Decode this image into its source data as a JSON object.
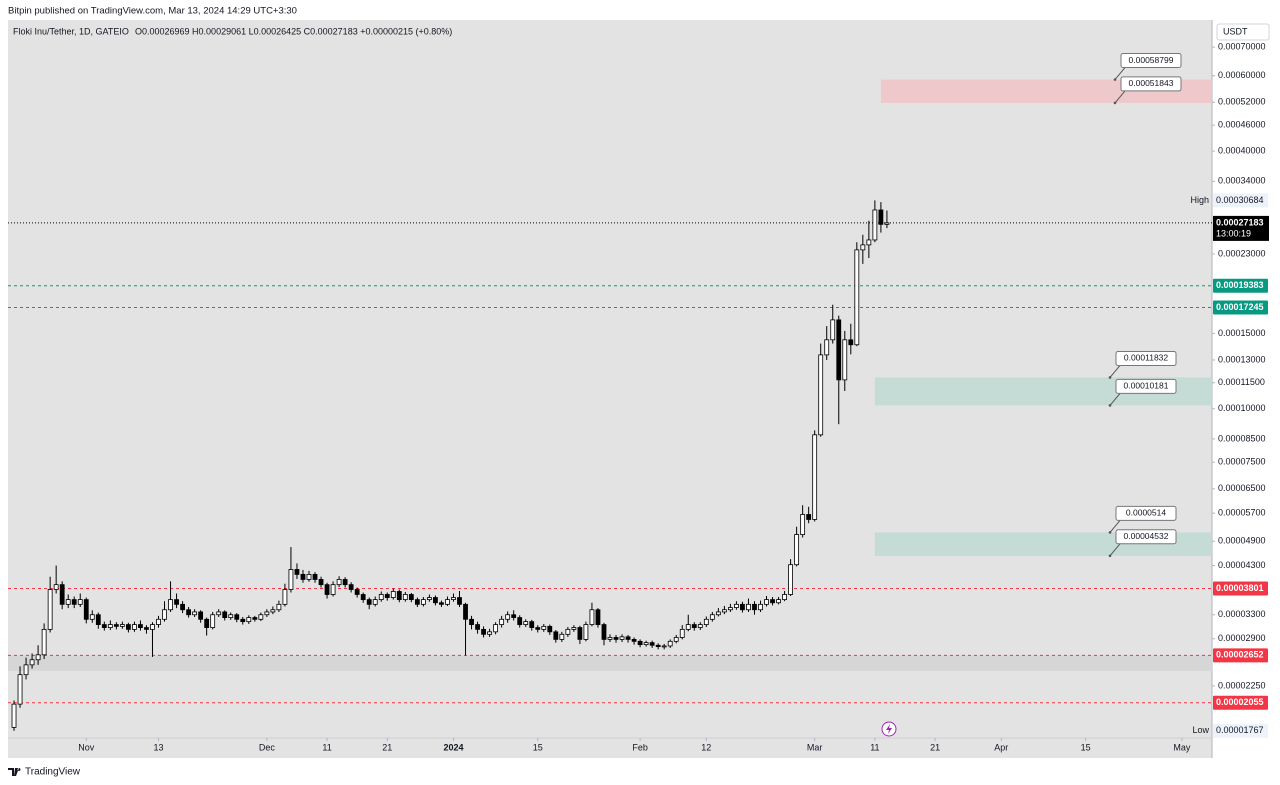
{
  "header": {
    "published": "Bitpin published on TradingView.com, Mar 13, 2024 14:29 UTC+3:30",
    "brand": "TradingView"
  },
  "chart_data": {
    "type": "candlestick",
    "symbol": "Floki Inu/Tether, 1D, GATEIO",
    "ohlc_text": "O0.00026969 H0.00029061 L0.00026425 C0.00027183 +0.00000215 (+0.80%)",
    "currency": "USDT",
    "log_scale": true,
    "grid": false,
    "xlim": [
      "2023-10-19",
      "2024-05-06"
    ],
    "xticks": [
      {
        "value": "2023-11-01",
        "label": "Nov"
      },
      {
        "value": "2023-11-13",
        "label": "13"
      },
      {
        "value": "2023-12-01",
        "label": "Dec"
      },
      {
        "value": "2023-12-11",
        "label": "11"
      },
      {
        "value": "2023-12-21",
        "label": "21"
      },
      {
        "value": "2024-01-01",
        "label": "2024"
      },
      {
        "value": "2024-01-15",
        "label": "15"
      },
      {
        "value": "2024-02-01",
        "label": "Feb"
      },
      {
        "value": "2024-02-12",
        "label": "12"
      },
      {
        "value": "2024-03-01",
        "label": "Mar"
      },
      {
        "value": "2024-03-11",
        "label": "11"
      },
      {
        "value": "2024-03-21",
        "label": "21"
      },
      {
        "value": "2024-04-01",
        "label": "Apr"
      },
      {
        "value": "2024-04-15",
        "label": "15"
      },
      {
        "value": "2024-05-01",
        "label": "May"
      }
    ],
    "ylim": [
      1.7e-05,
      0.00081
    ],
    "yticks": [
      {
        "value": 0.0007,
        "label": "0.00070000"
      },
      {
        "value": 0.0006,
        "label": "0.00060000"
      },
      {
        "value": 0.00052,
        "label": "0.00052000"
      },
      {
        "value": 0.00046,
        "label": "0.00046000"
      },
      {
        "value": 0.0004,
        "label": "0.00040000"
      },
      {
        "value": 0.00034,
        "label": "0.00034000"
      },
      {
        "value": 0.00023,
        "label": "0.00023000"
      },
      {
        "value": 0.00015,
        "label": "0.00015000"
      },
      {
        "value": 0.00013,
        "label": "0.00013000"
      },
      {
        "value": 0.000115,
        "label": "0.00011500"
      },
      {
        "value": 0.0001,
        "label": "0.00010000"
      },
      {
        "value": 8.5e-05,
        "label": "0.00008500"
      },
      {
        "value": 7.5e-05,
        "label": "0.00007500"
      },
      {
        "value": 6.5e-05,
        "label": "0.00006500"
      },
      {
        "value": 5.7e-05,
        "label": "0.00005700"
      },
      {
        "value": 4.9e-05,
        "label": "0.00004900"
      },
      {
        "value": 4.3e-05,
        "label": "0.00004300"
      },
      {
        "value": 3.3e-05,
        "label": "0.00003300"
      },
      {
        "value": 2.9e-05,
        "label": "0.00002900"
      },
      {
        "value": 2.25e-05,
        "label": "0.00002250"
      }
    ],
    "up_color": "#ffffff",
    "down_color": "#000000",
    "x": [
      "2023-10-20",
      "2023-10-21",
      "2023-10-22",
      "2023-10-23",
      "2023-10-24",
      "2023-10-25",
      "2023-10-26",
      "2023-10-27",
      "2023-10-28",
      "2023-10-29",
      "2023-10-30",
      "2023-10-31",
      "2023-11-01",
      "2023-11-02",
      "2023-11-03",
      "2023-11-04",
      "2023-11-05",
      "2023-11-06",
      "2023-11-07",
      "2023-11-08",
      "2023-11-09",
      "2023-11-10",
      "2023-11-11",
      "2023-11-12",
      "2023-11-13",
      "2023-11-14",
      "2023-11-15",
      "2023-11-16",
      "2023-11-17",
      "2023-11-18",
      "2023-11-19",
      "2023-11-20",
      "2023-11-21",
      "2023-11-22",
      "2023-11-23",
      "2023-11-24",
      "2023-11-25",
      "2023-11-26",
      "2023-11-27",
      "2023-11-28",
      "2023-11-29",
      "2023-11-30",
      "2023-12-01",
      "2023-12-02",
      "2023-12-03",
      "2023-12-04",
      "2023-12-05",
      "2023-12-06",
      "2023-12-07",
      "2023-12-08",
      "2023-12-09",
      "2023-12-10",
      "2023-12-11",
      "2023-12-12",
      "2023-12-13",
      "2023-12-14",
      "2023-12-15",
      "2023-12-16",
      "2023-12-17",
      "2023-12-18",
      "2023-12-19",
      "2023-12-20",
      "2023-12-21",
      "2023-12-22",
      "2023-12-23",
      "2023-12-24",
      "2023-12-25",
      "2023-12-26",
      "2023-12-27",
      "2023-12-28",
      "2023-12-29",
      "2023-12-30",
      "2023-12-31",
      "2024-01-01",
      "2024-01-02",
      "2024-01-03",
      "2024-01-04",
      "2024-01-05",
      "2024-01-06",
      "2024-01-07",
      "2024-01-08",
      "2024-01-09",
      "2024-01-10",
      "2024-01-11",
      "2024-01-12",
      "2024-01-13",
      "2024-01-14",
      "2024-01-15",
      "2024-01-16",
      "2024-01-17",
      "2024-01-18",
      "2024-01-19",
      "2024-01-20",
      "2024-01-21",
      "2024-01-22",
      "2024-01-23",
      "2024-01-24",
      "2024-01-25",
      "2024-01-26",
      "2024-01-27",
      "2024-01-28",
      "2024-01-29",
      "2024-01-30",
      "2024-01-31",
      "2024-02-01",
      "2024-02-02",
      "2024-02-03",
      "2024-02-04",
      "2024-02-05",
      "2024-02-06",
      "2024-02-07",
      "2024-02-08",
      "2024-02-09",
      "2024-02-10",
      "2024-02-11",
      "2024-02-12",
      "2024-02-13",
      "2024-02-14",
      "2024-02-15",
      "2024-02-16",
      "2024-02-17",
      "2024-02-18",
      "2024-02-19",
      "2024-02-20",
      "2024-02-21",
      "2024-02-22",
      "2024-02-23",
      "2024-02-24",
      "2024-02-25",
      "2024-02-26",
      "2024-02-27",
      "2024-02-28",
      "2024-02-29",
      "2024-03-01",
      "2024-03-02",
      "2024-03-03",
      "2024-03-04",
      "2024-03-05",
      "2024-03-06",
      "2024-03-07",
      "2024-03-08",
      "2024-03-09",
      "2024-03-10",
      "2024-03-11",
      "2024-03-12",
      "2024-03-13"
    ],
    "open": [
      1.8e-05,
      2.04e-05,
      2.39e-05,
      2.52e-05,
      2.59e-05,
      2.66e-05,
      3.05e-05,
      3.78e-05,
      3.88e-05,
      3.49e-05,
      3.58e-05,
      3.49e-05,
      3.58e-05,
      3.22e-05,
      3.3e-05,
      3.13e-05,
      3.08e-05,
      3.13e-05,
      3.1e-05,
      3.13e-05,
      3.05e-05,
      3.13e-05,
      3.08e-05,
      3.05e-05,
      3.13e-05,
      3.22e-05,
      3.39e-05,
      3.58e-05,
      3.49e-05,
      3.39e-05,
      3.3e-05,
      3.35e-05,
      3.22e-05,
      3.08e-05,
      3.3e-05,
      3.35e-05,
      3.25e-05,
      3.3e-05,
      3.22e-05,
      3.18e-05,
      3.25e-05,
      3.22e-05,
      3.3e-05,
      3.35e-05,
      3.39e-05,
      3.49e-05,
      3.78e-05,
      4.21e-05,
      4.1e-05,
      3.99e-05,
      4.1e-05,
      3.99e-05,
      3.88e-05,
      3.68e-05,
      3.88e-05,
      3.99e-05,
      3.88e-05,
      3.78e-05,
      3.68e-05,
      3.58e-05,
      3.49e-05,
      3.58e-05,
      3.68e-05,
      3.62e-05,
      3.74e-05,
      3.58e-05,
      3.68e-05,
      3.58e-05,
      3.49e-05,
      3.58e-05,
      3.62e-05,
      3.52e-05,
      3.49e-05,
      3.58e-05,
      3.62e-05,
      3.49e-05,
      3.22e-05,
      3.13e-05,
      3.05e-05,
      2.97e-05,
      3.01e-05,
      3.13e-05,
      3.22e-05,
      3.3e-05,
      3.25e-05,
      3.13e-05,
      3.18e-05,
      3.08e-05,
      3.05e-05,
      3.1e-05,
      3.01e-05,
      2.89e-05,
      2.97e-05,
      3.05e-05,
      3.08e-05,
      2.89e-05,
      3.13e-05,
      3.39e-05,
      3.13e-05,
      2.89e-05,
      2.92e-05,
      2.89e-05,
      2.93e-05,
      2.89e-05,
      2.86e-05,
      2.81e-05,
      2.84e-05,
      2.8e-05,
      2.78e-05,
      2.79e-05,
      2.86e-05,
      2.92e-05,
      3.05e-05,
      3.13e-05,
      3.08e-05,
      3.13e-05,
      3.22e-05,
      3.3e-05,
      3.35e-05,
      3.39e-05,
      3.43e-05,
      3.49e-05,
      3.39e-05,
      3.49e-05,
      3.39e-05,
      3.49e-05,
      3.58e-05,
      3.52e-05,
      3.58e-05,
      3.68e-05,
      4.32e-05,
      5.08e-05,
      5.66e-05,
      5.51e-05,
      8.69e-05,
      0.0001336,
      0.0001449,
      0.0001613,
      0.0001168,
      0.0001449,
      0.0001411,
      0.0002351,
      0.0002415,
      0.000248,
      0.0002914,
      0.00026969
    ],
    "high": [
      2.08e-05,
      2.5e-05,
      2.62e-05,
      2.68e-05,
      2.8e-05,
      3.15e-05,
      4.05e-05,
      4.3e-05,
      3.95e-05,
      3.68e-05,
      3.64e-05,
      3.7e-05,
      3.62e-05,
      3.38e-05,
      3.34e-05,
      3.18e-05,
      3.2e-05,
      3.17e-05,
      3.18e-05,
      3.16e-05,
      3.18e-05,
      3.2e-05,
      3.12e-05,
      3.17e-05,
      3.28e-05,
      3.55e-05,
      3.95e-05,
      3.7e-05,
      3.55e-05,
      3.44e-05,
      3.4e-05,
      3.38e-05,
      3.25e-05,
      3.35e-05,
      3.4e-05,
      3.38e-05,
      3.34e-05,
      3.33e-05,
      3.26e-05,
      3.29e-05,
      3.28e-05,
      3.34e-05,
      3.4e-05,
      3.45e-05,
      3.56e-05,
      3.9e-05,
      4.75e-05,
      4.35e-05,
      4.2e-05,
      4.18e-05,
      4.15e-05,
      4.05e-05,
      3.92e-05,
      3.95e-05,
      4.06e-05,
      4.04e-05,
      3.93e-05,
      3.82e-05,
      3.72e-05,
      3.62e-05,
      3.64e-05,
      3.74e-05,
      3.72e-05,
      3.8e-05,
      3.78e-05,
      3.73e-05,
      3.71e-05,
      3.62e-05,
      3.63e-05,
      3.68e-05,
      3.66e-05,
      3.56e-05,
      3.64e-05,
      3.7e-05,
      3.75e-05,
      3.52e-05,
      3.28e-05,
      3.18e-05,
      3.1e-05,
      3.06e-05,
      3.17e-05,
      3.28e-05,
      3.36e-05,
      3.38e-05,
      3.29e-05,
      3.22e-05,
      3.21e-05,
      3.12e-05,
      3.14e-05,
      3.13e-05,
      3.04e-05,
      3.01e-05,
      3.09e-05,
      3.12e-05,
      3.11e-05,
      3.18e-05,
      3.52e-05,
      3.42e-05,
      3.16e-05,
      2.97e-05,
      2.96e-05,
      2.97e-05,
      2.96e-05,
      2.92e-05,
      2.89e-05,
      2.87e-05,
      2.87e-05,
      2.83e-05,
      2.82e-05,
      2.89e-05,
      2.96e-05,
      3.12e-05,
      3.3e-05,
      3.17e-05,
      3.17e-05,
      3.27e-05,
      3.35e-05,
      3.42e-05,
      3.46e-05,
      3.5e-05,
      3.55e-05,
      3.54e-05,
      3.6e-05,
      3.55e-05,
      3.56e-05,
      3.65e-05,
      3.63e-05,
      3.63e-05,
      3.75e-05,
      4.45e-05,
      5.3e-05,
      5.95e-05,
      5.9e-05,
      8.9e-05,
      0.000142,
      0.000156,
      0.000175,
      0.000165,
      0.000152,
      0.000158,
      0.000245,
      0.000255,
      0.000275,
      0.00030684,
      0.000304,
      0.00029061
    ],
    "low": [
      1.767e-05,
      2e-05,
      2.33e-05,
      2.47e-05,
      2.52e-05,
      2.6e-05,
      3e-05,
      3.7e-05,
      3.4e-05,
      3.42e-05,
      3.42e-05,
      3.44e-05,
      3.15e-05,
      3.16e-05,
      3.06e-05,
      3.03e-05,
      3.04e-05,
      3.05e-05,
      3.06e-05,
      3e-05,
      3.01e-05,
      3.03e-05,
      2.98e-05,
      2.63e-05,
      3.08e-05,
      3.18e-05,
      3.35e-05,
      3.42e-05,
      3.33e-05,
      3.25e-05,
      3.26e-05,
      3.16e-05,
      2.95e-05,
      3.05e-05,
      3.26e-05,
      3.2e-05,
      3.21e-05,
      3.17e-05,
      3.13e-05,
      3.14e-05,
      3.18e-05,
      3.19e-05,
      3.26e-05,
      3.31e-05,
      3.35e-05,
      3.45e-05,
      3.72e-05,
      4e-05,
      3.92e-05,
      3.94e-05,
      3.92e-05,
      3.82e-05,
      3.6e-05,
      3.64e-05,
      3.83e-05,
      3.82e-05,
      3.72e-05,
      3.62e-05,
      3.52e-05,
      3.4e-05,
      3.45e-05,
      3.54e-05,
      3.56e-05,
      3.58e-05,
      3.53e-05,
      3.54e-05,
      3.53e-05,
      3.44e-05,
      3.45e-05,
      3.54e-05,
      3.47e-05,
      3.44e-05,
      3.46e-05,
      3.54e-05,
      3.44e-05,
      2.65e-05,
      3.05e-05,
      2.98e-05,
      2.92e-05,
      2.93e-05,
      2.97e-05,
      3.08e-05,
      3.16e-05,
      3.2e-05,
      3.08e-05,
      3.09e-05,
      3.03e-05,
      3e-05,
      3.01e-05,
      2.96e-05,
      2.84e-05,
      2.85e-05,
      2.93e-05,
      3.01e-05,
      2.82e-05,
      2.86e-05,
      3.1e-05,
      3.08e-05,
      2.8e-05,
      2.85e-05,
      2.84e-05,
      2.85e-05,
      2.84e-05,
      2.81e-05,
      2.77e-05,
      2.78e-05,
      2.76e-05,
      2.74e-05,
      2.74e-05,
      2.76e-05,
      2.83e-05,
      2.89e-05,
      3.02e-05,
      3.03e-05,
      3.04e-05,
      3.09e-05,
      3.18e-05,
      3.27e-05,
      3.31e-05,
      3.35e-05,
      3.39e-05,
      3.34e-05,
      3.35e-05,
      3.3e-05,
      3.35e-05,
      3.45e-05,
      3.47e-05,
      3.49e-05,
      3.55e-05,
      3.65e-05,
      4.28e-05,
      5e-05,
      5.4e-05,
      5.45e-05,
      8.6e-05,
      0.00013,
      0.000142,
      9.2e-05,
      0.00011,
      0.000134,
      0.00014,
      0.000218,
      0.000225,
      0.000245,
      0.000258,
      0.00026425
    ],
    "close": [
      2.04e-05,
      2.39e-05,
      2.52e-05,
      2.59e-05,
      2.66e-05,
      3.05e-05,
      3.78e-05,
      3.88e-05,
      3.49e-05,
      3.58e-05,
      3.49e-05,
      3.58e-05,
      3.22e-05,
      3.3e-05,
      3.13e-05,
      3.08e-05,
      3.13e-05,
      3.1e-05,
      3.13e-05,
      3.05e-05,
      3.13e-05,
      3.08e-05,
      3.05e-05,
      3.13e-05,
      3.22e-05,
      3.39e-05,
      3.58e-05,
      3.49e-05,
      3.39e-05,
      3.3e-05,
      3.35e-05,
      3.22e-05,
      3.08e-05,
      3.3e-05,
      3.35e-05,
      3.25e-05,
      3.3e-05,
      3.22e-05,
      3.18e-05,
      3.25e-05,
      3.22e-05,
      3.3e-05,
      3.35e-05,
      3.39e-05,
      3.49e-05,
      3.78e-05,
      4.21e-05,
      4.1e-05,
      3.99e-05,
      4.1e-05,
      3.99e-05,
      3.88e-05,
      3.68e-05,
      3.88e-05,
      3.99e-05,
      3.88e-05,
      3.78e-05,
      3.68e-05,
      3.58e-05,
      3.49e-05,
      3.58e-05,
      3.68e-05,
      3.62e-05,
      3.74e-05,
      3.58e-05,
      3.68e-05,
      3.58e-05,
      3.49e-05,
      3.58e-05,
      3.62e-05,
      3.52e-05,
      3.49e-05,
      3.58e-05,
      3.62e-05,
      3.49e-05,
      3.22e-05,
      3.13e-05,
      3.05e-05,
      2.97e-05,
      3.01e-05,
      3.13e-05,
      3.22e-05,
      3.3e-05,
      3.25e-05,
      3.13e-05,
      3.18e-05,
      3.08e-05,
      3.05e-05,
      3.1e-05,
      3.01e-05,
      2.89e-05,
      2.97e-05,
      3.05e-05,
      3.08e-05,
      2.89e-05,
      3.13e-05,
      3.39e-05,
      3.13e-05,
      2.89e-05,
      2.92e-05,
      2.89e-05,
      2.93e-05,
      2.89e-05,
      2.86e-05,
      2.81e-05,
      2.84e-05,
      2.8e-05,
      2.78e-05,
      2.79e-05,
      2.86e-05,
      2.92e-05,
      3.05e-05,
      3.13e-05,
      3.08e-05,
      3.13e-05,
      3.22e-05,
      3.3e-05,
      3.35e-05,
      3.39e-05,
      3.43e-05,
      3.49e-05,
      3.39e-05,
      3.49e-05,
      3.39e-05,
      3.49e-05,
      3.58e-05,
      3.52e-05,
      3.58e-05,
      3.68e-05,
      4.32e-05,
      5.08e-05,
      5.66e-05,
      5.51e-05,
      8.69e-05,
      0.0001336,
      0.0001449,
      0.0001613,
      0.0001168,
      0.0001449,
      0.0001411,
      0.0002351,
      0.0002415,
      0.000248,
      0.0002914,
      0.00026969,
      0.00027183
    ],
    "current": {
      "value": 0.00027183,
      "countdown": "13:00:19",
      "color": "#000000"
    },
    "extremes": [
      {
        "name": "High",
        "value": 0.00030684
      },
      {
        "name": "Low",
        "value": 1.767e-05
      }
    ],
    "levels": [
      {
        "value": 0.00019383,
        "color": "#089981"
      },
      {
        "value": 0.00017245,
        "color": "#089981"
      },
      {
        "value": 3.801e-05,
        "color": "#f23645"
      },
      {
        "value": 2.652e-05,
        "color": "#f23645"
      },
      {
        "value": 2.055e-05,
        "color": "#f23645"
      }
    ],
    "zones": [
      {
        "low": 0.00051843,
        "high": 0.00058799,
        "color": "#f0c3c6",
        "x_start": "2024-03-12"
      },
      {
        "low": 0.00010181,
        "high": 0.00011832,
        "color": "#bfd9d2",
        "x_start": "2024-03-11"
      },
      {
        "low": 4.532e-05,
        "high": 5.14e-05,
        "color": "#bfd9d2",
        "x_start": "2024-03-11"
      }
    ],
    "band": {
      "low": 2.44e-05,
      "high": 2.652e-05,
      "color": "#d6d6d6"
    }
  }
}
